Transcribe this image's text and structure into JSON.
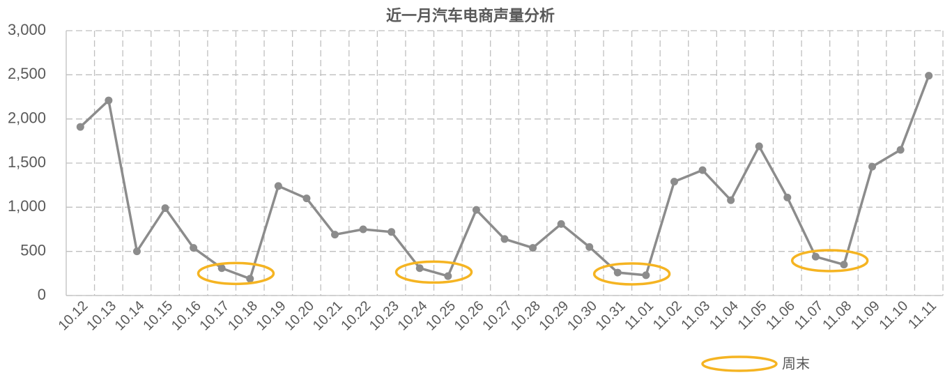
{
  "chart_data": {
    "type": "line",
    "title": "近一月汽车电商声量分析",
    "categories": [
      "10.12",
      "10.13",
      "10.14",
      "10.15",
      "10.16",
      "10.17",
      "10.18",
      "10.19",
      "10.20",
      "10.21",
      "10.22",
      "10.23",
      "10.24",
      "10.25",
      "10.26",
      "10.27",
      "10.28",
      "10.29",
      "10.30",
      "10.31",
      "11.01",
      "11.02",
      "11.03",
      "11.04",
      "11.05",
      "11.06",
      "11.07",
      "11.08",
      "11.09",
      "11.10",
      "11.11"
    ],
    "values": [
      1910,
      2210,
      500,
      990,
      540,
      310,
      190,
      1240,
      1100,
      690,
      750,
      720,
      310,
      220,
      970,
      640,
      540,
      810,
      550,
      260,
      230,
      1290,
      1420,
      1080,
      1690,
      1110,
      440,
      350,
      1460,
      1650,
      2490
    ],
    "color": "#8c8c8c",
    "ylim": [
      0,
      3000
    ],
    "yticks": [
      0,
      500,
      {
        "value": 1000,
        "label": "1,000"
      },
      {
        "value": 1500,
        "label": "1,500"
      },
      {
        "value": 2000,
        "label": "2,000"
      },
      {
        "value": 2500,
        "label": "2,500"
      },
      {
        "value": 3000,
        "label": "3,000"
      }
    ],
    "grid": true,
    "highlight": {
      "name": "周末",
      "color": "#f5b422",
      "groups": [
        [
          "10.17",
          "10.18"
        ],
        [
          "10.24",
          "10.25"
        ],
        [
          "10.31",
          "11.01"
        ],
        [
          "11.07",
          "11.08"
        ]
      ]
    }
  }
}
